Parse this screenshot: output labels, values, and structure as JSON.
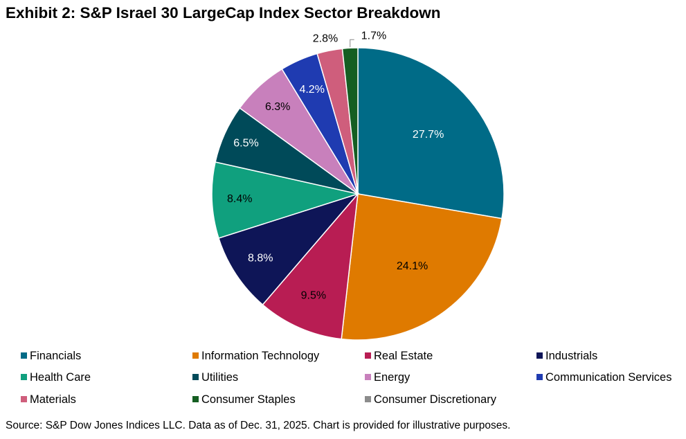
{
  "title": "Exhibit 2: S&P Israel 30 LargeCap Index Sector Breakdown",
  "source": "Source: S&P Dow Jones Indices LLC. Data as of Dec. 31, 2025. Chart is provided for illustrative purposes.",
  "chart_data": {
    "type": "pie",
    "title": "Exhibit 2: S&P Israel 30 LargeCap Index Sector Breakdown",
    "start_angle": "12 o'clock",
    "direction": "clockwise",
    "slices": [
      {
        "name": "Financials",
        "value": 27.7,
        "label": "27.7%",
        "color": "#006B87",
        "label_color": "#FFFFFF"
      },
      {
        "name": "Information Technology",
        "value": 24.1,
        "label": "24.1%",
        "color": "#DF7A00",
        "label_color": "#000000"
      },
      {
        "name": "Real Estate",
        "value": 9.5,
        "label": "9.5%",
        "color": "#B81D53",
        "label_color": "#000000"
      },
      {
        "name": "Industrials",
        "value": 8.8,
        "label": "8.8%",
        "color": "#0E1557",
        "label_color": "#FFFFFF"
      },
      {
        "name": "Health Care",
        "value": 8.4,
        "label": "8.4%",
        "color": "#10A07E",
        "label_color": "#000000"
      },
      {
        "name": "Utilities",
        "value": 6.5,
        "label": "6.5%",
        "color": "#004A59",
        "label_color": "#FFFFFF"
      },
      {
        "name": "Energy",
        "value": 6.3,
        "label": "6.3%",
        "color": "#C880BC",
        "label_color": "#000000"
      },
      {
        "name": "Communication Services",
        "value": 4.2,
        "label": "4.2%",
        "color": "#1F3BB1",
        "label_color": "#FFFFFF"
      },
      {
        "name": "Materials",
        "value": 2.8,
        "label": "2.8%",
        "color": "#CF5E7C",
        "label_color": "#000000"
      },
      {
        "name": "Consumer Staples",
        "value": 1.7,
        "label": "1.7%",
        "color": "#155E22",
        "label_color": "#000000"
      }
    ],
    "legend": [
      {
        "name": "Financials",
        "color": "#006B87"
      },
      {
        "name": "Information Technology",
        "color": "#DF7A00"
      },
      {
        "name": "Real Estate",
        "color": "#B81D53"
      },
      {
        "name": "Industrials",
        "color": "#0E1557"
      },
      {
        "name": "Health Care",
        "color": "#10A07E"
      },
      {
        "name": "Utilities",
        "color": "#004A59"
      },
      {
        "name": "Energy",
        "color": "#C880BC"
      },
      {
        "name": "Communication Services",
        "color": "#1F3BB1"
      },
      {
        "name": "Materials",
        "color": "#CF5E7C"
      },
      {
        "name": "Consumer Staples",
        "color": "#155E22"
      },
      {
        "name": "Consumer Discretionary",
        "color": "#8C8C8C"
      }
    ],
    "legend_position": "bottom"
  }
}
